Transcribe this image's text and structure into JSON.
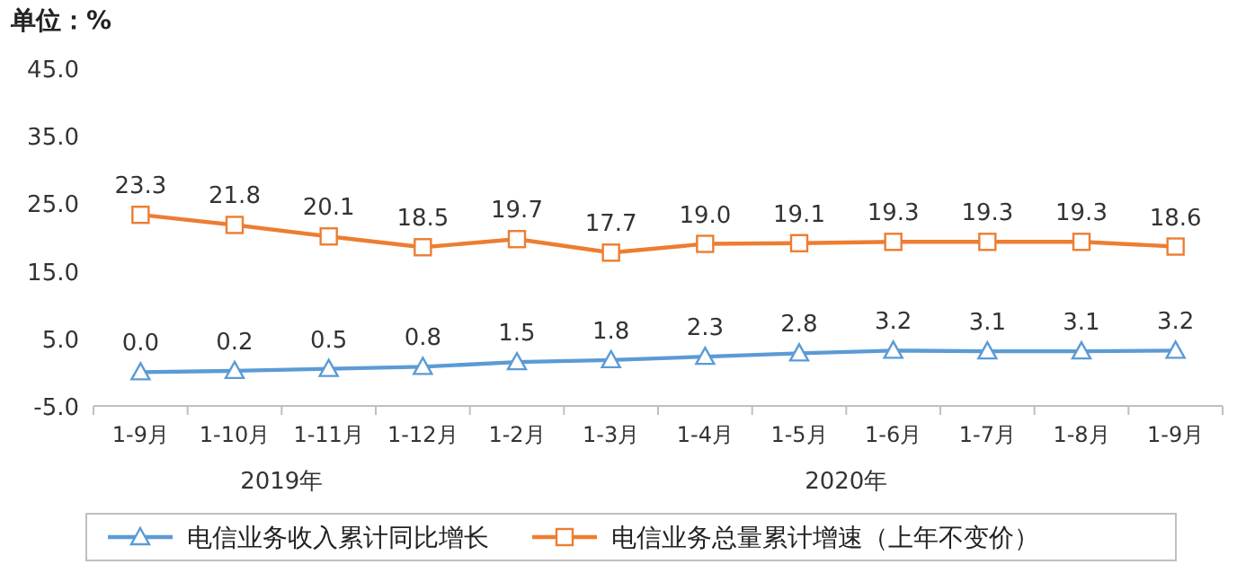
{
  "chart_data": {
    "type": "line",
    "title": "单位：%",
    "categories": [
      "1-9月",
      "1-10月",
      "1-11月",
      "1-12月",
      "1-2月",
      "1-3月",
      "1-4月",
      "1-5月",
      "1-6月",
      "1-7月",
      "1-8月",
      "1-9月"
    ],
    "series": [
      {
        "name": "电信业务收入累计同比增长",
        "color": "#5b9bd5",
        "marker": "triangle",
        "values": [
          0.0,
          0.2,
          0.5,
          0.8,
          1.5,
          1.8,
          2.3,
          2.8,
          3.2,
          3.1,
          3.1,
          3.2
        ],
        "value_labels": [
          "0.0",
          "0.2",
          "0.5",
          "0.8",
          "1.5",
          "1.8",
          "2.3",
          "2.8",
          "3.2",
          "3.1",
          "3.1",
          "3.2"
        ]
      },
      {
        "name": "电信业务总量累计增速（上年不变价）",
        "color": "#ed7d31",
        "marker": "square",
        "values": [
          23.3,
          21.8,
          20.1,
          18.5,
          19.7,
          17.7,
          19.0,
          19.1,
          19.3,
          19.3,
          19.3,
          18.6
        ],
        "value_labels": [
          "23.3",
          "21.8",
          "20.1",
          "18.5",
          "19.7",
          "17.7",
          "19.0",
          "19.1",
          "19.3",
          "19.3",
          "19.3",
          "18.6"
        ]
      }
    ],
    "ylim": [
      -5,
      45
    ],
    "yticks": [
      {
        "value": -5,
        "label": "-5.0"
      },
      {
        "value": 5,
        "label": "5.0"
      },
      {
        "value": 15,
        "label": "15.0"
      },
      {
        "value": 25,
        "label": "25.0"
      },
      {
        "value": 35,
        "label": "35.0"
      },
      {
        "value": 45,
        "label": "45.0"
      }
    ],
    "annotations": [
      "2019年",
      "2020年"
    ],
    "legend": "bottom",
    "grid": false
  }
}
